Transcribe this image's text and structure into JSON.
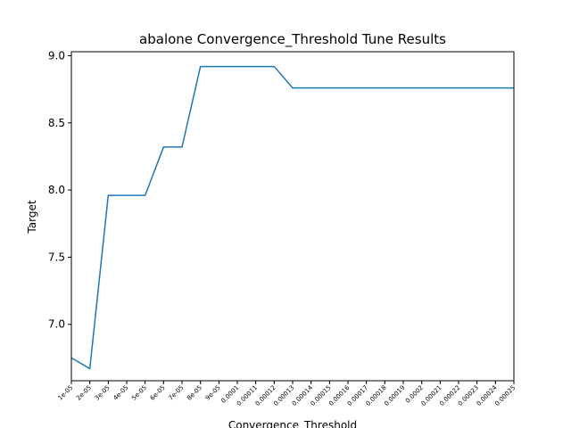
{
  "chart_data": {
    "type": "line",
    "title": "abalone Convergence_Threshold Tune Results",
    "xlabel": "Convergence_Threshold",
    "ylabel": "Target",
    "categories": [
      "1e-05",
      "2e-05",
      "3e-05",
      "4e-05",
      "5e-05",
      "6e-05",
      "7e-05",
      "8e-05",
      "9e-05",
      "0.0001",
      "0.00011",
      "0.00012",
      "0.00013",
      "0.00014",
      "0.00015",
      "0.00016",
      "0.00017",
      "0.00018",
      "0.00019",
      "0.0002",
      "0.00021",
      "0.00022",
      "0.00023",
      "0.00024",
      "0.00025"
    ],
    "series": [
      {
        "name": "",
        "color": "#1f77b4",
        "values": [
          6.75,
          6.67,
          7.96,
          7.96,
          7.96,
          8.32,
          8.32,
          8.92,
          8.92,
          8.92,
          8.92,
          8.92,
          8.76,
          8.76,
          8.76,
          8.76,
          8.76,
          8.76,
          8.76,
          8.76,
          8.76,
          8.76,
          8.76,
          8.76,
          8.76
        ]
      }
    ],
    "yticks": [
      7.0,
      7.5,
      8.0,
      8.5,
      9.0
    ],
    "ytick_labels": [
      "7.0",
      "7.5",
      "8.0",
      "8.5",
      "9.0"
    ],
    "ylim": [
      6.58,
      9.03
    ],
    "grid": false,
    "legend": "none"
  }
}
